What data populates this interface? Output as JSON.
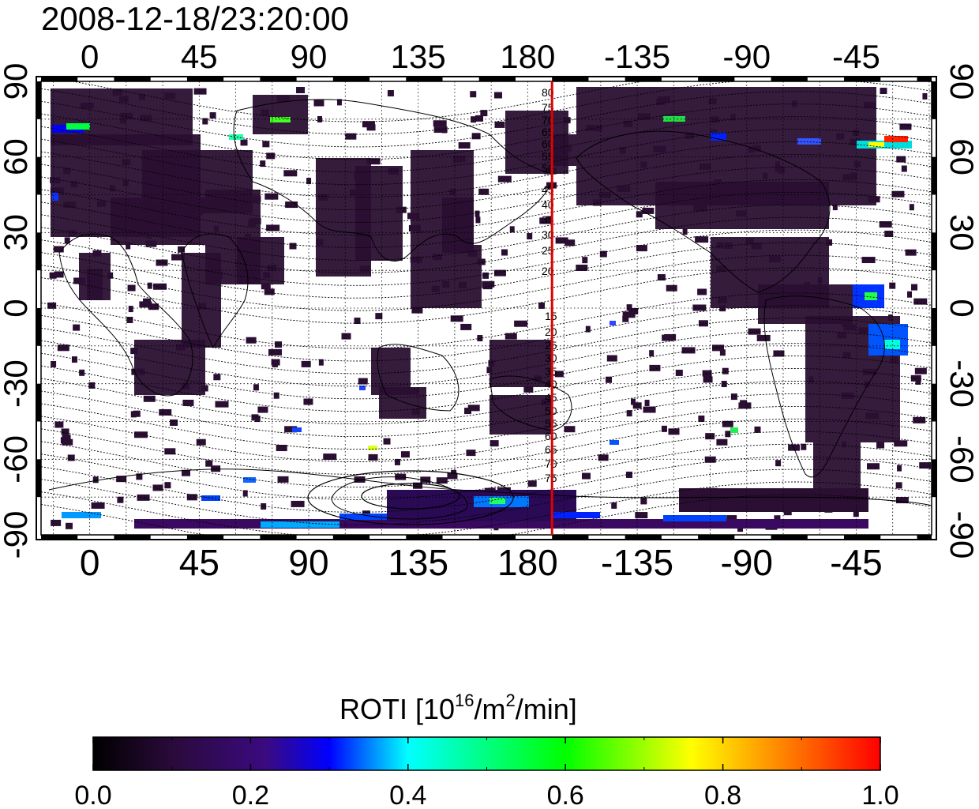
{
  "title": "2008-12-18/23:20:00",
  "map": {
    "lon_start": -20,
    "lon_end": 346,
    "lat_range": [
      -90,
      90
    ],
    "lon_ticks": [
      "0",
      "45",
      "90",
      "135",
      "180",
      "-135",
      "-90",
      "-45"
    ],
    "lat_ticks": [
      "90",
      "60",
      "30",
      "0",
      "-30",
      "-60",
      "-90"
    ],
    "terminator_lon": 190,
    "magnetic_lat_labels_north": [
      "80",
      "75",
      "70",
      "65",
      "60",
      "55",
      "50",
      "45",
      "40",
      "35",
      "30",
      "25",
      "20",
      "15"
    ],
    "magnetic_lat_labels_south": [
      "15",
      "20",
      "25",
      "30",
      "35",
      "40",
      "45",
      "50",
      "55",
      "60",
      "65",
      "70",
      "75"
    ],
    "colors": {
      "terminator": "#e00000",
      "data_dark": "#2a0f32",
      "frame": "#000000"
    }
  },
  "colorbar": {
    "label_main": "ROTI  [10",
    "label_sup1": "16",
    "label_mid": "/m",
    "label_sup2": "2",
    "label_end": "/min]",
    "ticks": [
      "0.0",
      "0.2",
      "0.4",
      "0.6",
      "0.8",
      "1.0"
    ],
    "range": [
      0.0,
      1.0
    ],
    "colormap": [
      "#000000",
      "#3a0a55",
      "#0000ff",
      "#00ffff",
      "#00ff00",
      "#ffff00",
      "#ff0000"
    ]
  }
}
